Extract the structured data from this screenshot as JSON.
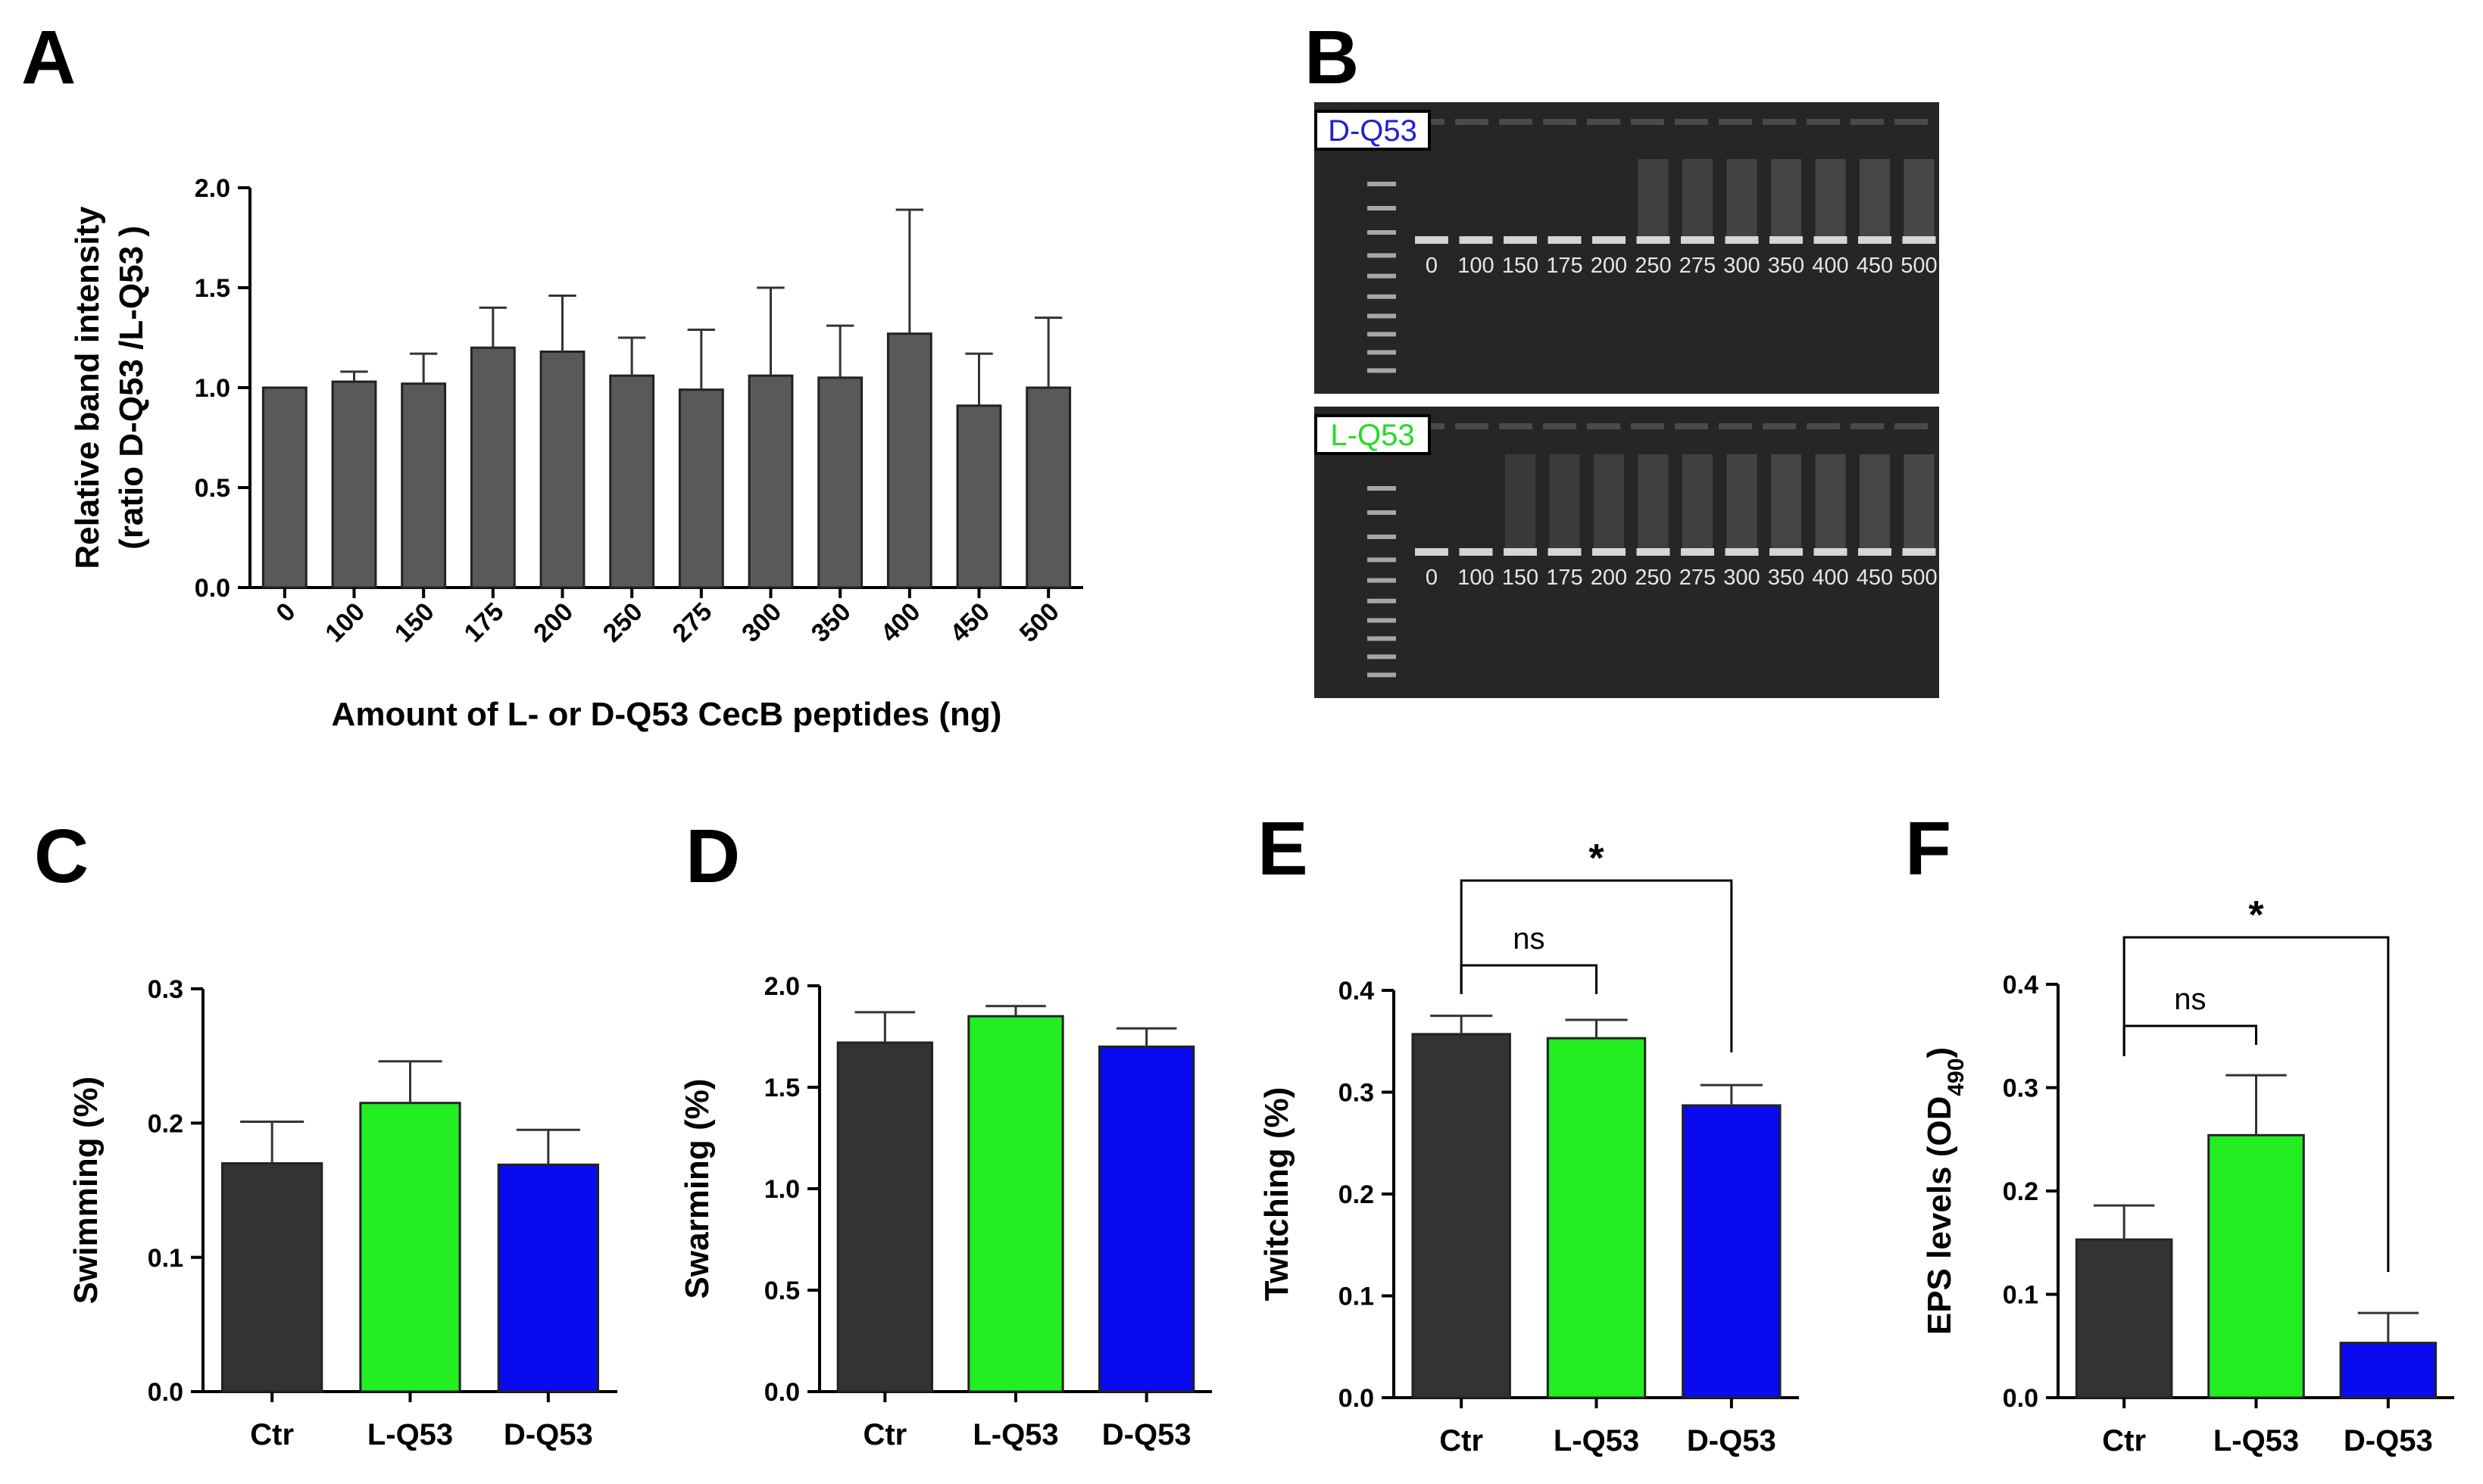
{
  "panel_letters": [
    "A",
    "B",
    "C",
    "D",
    "E",
    "F"
  ],
  "colors": {
    "gray_bar": "#595959",
    "ctr": "#333333",
    "l_q53": "#22ee22",
    "d_q53": "#0a0af0",
    "gel_bg": "#262626",
    "d_label": "#2222cc",
    "l_label": "#22dd22"
  },
  "gel": {
    "panels": [
      {
        "tag": "D-Q53",
        "tag_color": "#2222cc"
      },
      {
        "tag": "L-Q53",
        "tag_color": "#22dd22"
      }
    ],
    "lanes": [
      "0",
      "100",
      "150",
      "175",
      "200",
      "250",
      "275",
      "300",
      "350",
      "400",
      "450",
      "500"
    ]
  },
  "chart_data": [
    {
      "panel": "A",
      "type": "bar",
      "categories": [
        "0",
        "100",
        "150",
        "175",
        "200",
        "250",
        "275",
        "300",
        "350",
        "400",
        "450",
        "500"
      ],
      "values": [
        1.0,
        1.03,
        1.02,
        1.2,
        1.18,
        1.06,
        0.99,
        1.06,
        1.05,
        1.27,
        0.91,
        1.0
      ],
      "errors": [
        0.0,
        0.05,
        0.15,
        0.2,
        0.28,
        0.19,
        0.3,
        0.44,
        0.26,
        0.62,
        0.26,
        0.35
      ],
      "ylabel_line1": "Relative band intensity",
      "ylabel_line2": "(ratio D-Q53 /L-Q53 )",
      "xlabel": "Amount of L- or D-Q53 CecB peptides (ng)",
      "ylim": [
        0,
        2.0
      ],
      "yticks": [
        "0.0",
        "0.5",
        "1.0",
        "1.5",
        "2.0"
      ],
      "color": "#595959"
    },
    {
      "panel": "C",
      "type": "bar",
      "categories": [
        "Ctr",
        "L-Q53",
        "D-Q53"
      ],
      "values": [
        0.17,
        0.215,
        0.169
      ],
      "errors": [
        0.031,
        0.031,
        0.026
      ],
      "colors": [
        "#333333",
        "#22ee22",
        "#0a0af0"
      ],
      "ylabel": "Swimming (%)",
      "ylim": [
        0,
        0.3
      ],
      "yticks": [
        "0.0",
        "0.1",
        "0.2",
        "0.3"
      ]
    },
    {
      "panel": "D",
      "type": "bar",
      "categories": [
        "Ctr",
        "L-Q53",
        "D-Q53"
      ],
      "values": [
        1.72,
        1.85,
        1.7
      ],
      "errors": [
        0.15,
        0.05,
        0.09
      ],
      "colors": [
        "#333333",
        "#22ee22",
        "#0a0af0"
      ],
      "ylabel": "Swarming (%)",
      "ylim": [
        0,
        2.0
      ],
      "yticks": [
        "0.0",
        "0.5",
        "1.0",
        "1.5",
        "2.0"
      ]
    },
    {
      "panel": "E",
      "type": "bar",
      "categories": [
        "Ctr",
        "L-Q53",
        "D-Q53"
      ],
      "values": [
        0.357,
        0.353,
        0.287
      ],
      "errors": [
        0.018,
        0.018,
        0.02
      ],
      "colors": [
        "#333333",
        "#22ee22",
        "#0a0af0"
      ],
      "ylabel": "Twitching (%)",
      "ylim": [
        0,
        0.4
      ],
      "yticks": [
        "0.0",
        "0.1",
        "0.2",
        "0.3",
        "0.4"
      ],
      "comparisons": [
        {
          "from": 0,
          "to": 1,
          "label": "ns"
        },
        {
          "from": 0,
          "to": 2,
          "label": "*"
        }
      ]
    },
    {
      "panel": "F",
      "type": "bar",
      "categories": [
        "Ctr",
        "L-Q53",
        "D-Q53"
      ],
      "values": [
        0.153,
        0.254,
        0.053
      ],
      "errors": [
        0.033,
        0.058,
        0.029
      ],
      "colors": [
        "#333333",
        "#22ee22",
        "#0a0af0"
      ],
      "ylabel_main": "EPS levels (OD",
      "ylabel_sub": "490",
      "ylabel_close": ")",
      "ylim": [
        0,
        0.4
      ],
      "yticks": [
        "0.0",
        "0.1",
        "0.2",
        "0.3",
        "0.4"
      ],
      "comparisons": [
        {
          "from": 0,
          "to": 1,
          "label": "ns"
        },
        {
          "from": 0,
          "to": 2,
          "label": "*"
        }
      ]
    }
  ]
}
